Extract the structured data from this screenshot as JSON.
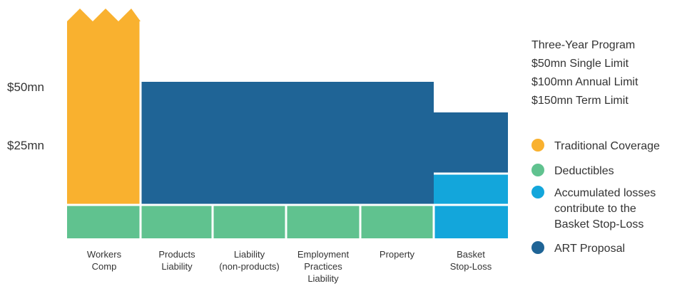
{
  "colors": {
    "traditional": "#F9B12F",
    "deductibles": "#60C28F",
    "accumulated": "#13A6DB",
    "art": "#1F6496",
    "text": "#333333",
    "divider": "#ffffff"
  },
  "y_axis": {
    "labels": [
      "$50mn",
      "$25mn"
    ]
  },
  "categories": [
    {
      "lines": [
        "Workers",
        "Comp"
      ]
    },
    {
      "lines": [
        "Products",
        "Liability"
      ]
    },
    {
      "lines": [
        "Liability",
        "(non-products)"
      ]
    },
    {
      "lines": [
        "Employment",
        "Practices",
        "Liability"
      ]
    },
    {
      "lines": [
        "Property"
      ]
    },
    {
      "lines": [
        "Basket",
        "Stop-Loss"
      ]
    }
  ],
  "program_info": {
    "lines": [
      "Three-Year Program",
      "$50mn Single Limit",
      "$100mn Annual Limit",
      "$150mn Term Limit"
    ]
  },
  "legend": [
    {
      "color_key": "traditional",
      "lines": [
        "Traditional Coverage"
      ]
    },
    {
      "color_key": "deductibles",
      "lines": [
        "Deductibles"
      ]
    },
    {
      "color_key": "accumulated",
      "lines": [
        "Accumulated losses",
        "contribute to the",
        "Basket Stop-Loss"
      ]
    },
    {
      "color_key": "art",
      "lines": [
        "ART Proposal"
      ]
    }
  ]
}
